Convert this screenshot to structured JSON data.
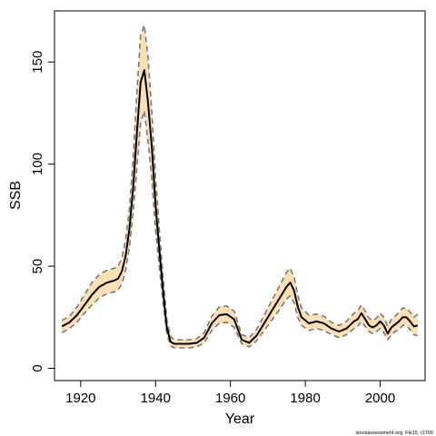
{
  "chart_data": {
    "type": "line",
    "xlabel": "Year",
    "ylabel": "SSB",
    "xlim": [
      1913,
      2012
    ],
    "ylim": [
      -6,
      175
    ],
    "xticks": [
      1920,
      1940,
      1960,
      1980,
      2000
    ],
    "yticks": [
      0,
      50,
      100,
      150
    ],
    "grid": false,
    "legend": "none",
    "colors": {
      "band": "#fce0b4",
      "bounds": "#7a7a7a",
      "estimate": "#000000"
    },
    "footer": "stockassessment.org, Fle15, r2766",
    "years": [
      1915,
      1917,
      1919,
      1921,
      1923,
      1925,
      1927,
      1929,
      1930,
      1931,
      1932,
      1933,
      1934,
      1935,
      1936,
      1937,
      1938,
      1939,
      1940,
      1941,
      1942,
      1943,
      1944,
      1945,
      1947,
      1949,
      1951,
      1953,
      1955,
      1957,
      1959,
      1961,
      1963,
      1965,
      1967,
      1969,
      1971,
      1973,
      1975,
      1976,
      1977,
      1978,
      1979,
      1981,
      1983,
      1985,
      1987,
      1989,
      1991,
      1993,
      1994,
      1995,
      1996,
      1997,
      1998,
      1999,
      2000,
      2001,
      2002,
      2003,
      2004,
      2005,
      2006,
      2007,
      2008,
      2009,
      2010
    ],
    "estimate": [
      20.5,
      22.5,
      26,
      31,
      36,
      40,
      42,
      43,
      44,
      47.5,
      55,
      68,
      88,
      115,
      140,
      146,
      130,
      108,
      80,
      58,
      38,
      20,
      13,
      12,
      12,
      12,
      12.5,
      15,
      22,
      26,
      26.5,
      24,
      14,
      12.5,
      16,
      22,
      28,
      34,
      40,
      42,
      38,
      30,
      25,
      22,
      23,
      22,
      19.5,
      18,
      19.5,
      23,
      24,
      27,
      24,
      21,
      20,
      21,
      23,
      21,
      17,
      20,
      21.5,
      23,
      25,
      25,
      23,
      20.5,
      21
    ],
    "upper": [
      23.5,
      25.5,
      30,
      36,
      42,
      46,
      48,
      49,
      50,
      54,
      63,
      78,
      102,
      135,
      163,
      168,
      152,
      125,
      93,
      68,
      45,
      24,
      15.5,
      14,
      14,
      14,
      14.5,
      17.5,
      25.5,
      30,
      30.5,
      28,
      16.5,
      15,
      19,
      26,
      33,
      40,
      47,
      49,
      44.5,
      35.5,
      29.5,
      26,
      26.5,
      25.5,
      22.5,
      21,
      23,
      27,
      28,
      31,
      28,
      24.5,
      23.5,
      24.5,
      27,
      25,
      20.5,
      24,
      25.5,
      27.5,
      29.5,
      29.5,
      27.5,
      25,
      26.5
    ],
    "lower": [
      17.5,
      19.5,
      22.5,
      27,
      31,
      34.5,
      36.5,
      37.5,
      38.5,
      41.5,
      48,
      59,
      76,
      98,
      120,
      126,
      111,
      92,
      68,
      49.5,
      32,
      17,
      11,
      10,
      10,
      10,
      10.5,
      12.5,
      18.5,
      22,
      22.5,
      20,
      12,
      10.5,
      13.5,
      18.5,
      23.5,
      28.5,
      34,
      35.5,
      32,
      25,
      21,
      18.5,
      19.5,
      18.5,
      16.5,
      15,
      16.5,
      19.5,
      20.5,
      23,
      20.5,
      18,
      17,
      18,
      19.5,
      17.5,
      14,
      16.5,
      18,
      19,
      21,
      21,
      19,
      16.5,
      16
    ]
  }
}
